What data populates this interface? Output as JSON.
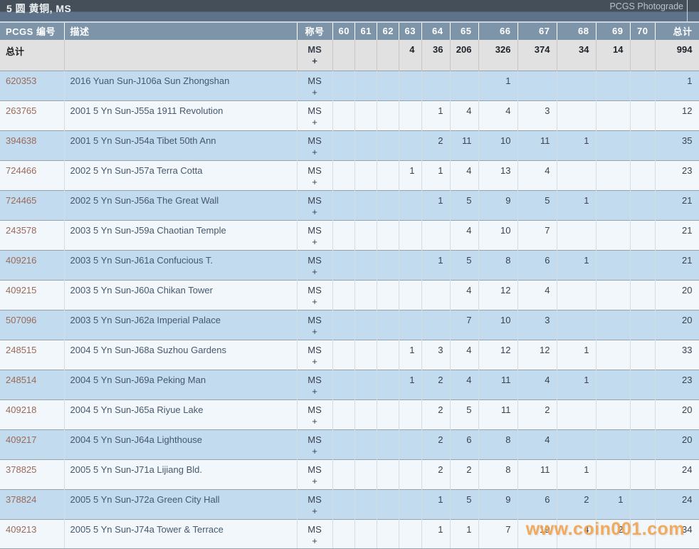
{
  "title_bar": {
    "title": "5 圆 黄铜, MS",
    "right_label": "PCGS Photograde"
  },
  "watermark": {
    "text": "www.coin001.com"
  },
  "colors": {
    "titlebar_bg": "#454f59",
    "header_bg": "#7e94a9",
    "totals_row_bg": "#e2e1e2",
    "row_alt_bg": "#c2dbee",
    "row_plain_bg": "#f2f7fb",
    "pcgs_number_text": "#9c6a59",
    "watermark_text": "#f2a44f"
  },
  "table": {
    "columns": {
      "pcgs_no": "PCGS 编号",
      "description": "描述",
      "designation": "称号",
      "total": "总计"
    },
    "grade_columns": [
      "60",
      "61",
      "62",
      "63",
      "64",
      "65",
      "66",
      "67",
      "68",
      "69",
      "70"
    ],
    "totals_row": {
      "label": "总计",
      "designation": [
        "MS",
        "+"
      ],
      "grades": {
        "63": 4,
        "64": 36,
        "65": 206,
        "66": 326,
        "67": 374,
        "68": 34,
        "69": 14
      },
      "total": 994
    },
    "rows": [
      {
        "pcgs_no": "620353",
        "description": "2016 Yuan Sun-J106a Sun Zhongshan",
        "designation": [
          "MS",
          "+"
        ],
        "grades": {
          "66": 1
        },
        "total": 1
      },
      {
        "pcgs_no": "263765",
        "description": "2001 5 Yn Sun-J55a 1911 Revolution",
        "designation": [
          "MS",
          "+"
        ],
        "grades": {
          "64": 1,
          "65": 4,
          "66": 4,
          "67": 3
        },
        "total": 12
      },
      {
        "pcgs_no": "394638",
        "description": "2001 5 Yn Sun-J54a Tibet 50th Ann",
        "designation": [
          "MS",
          "+"
        ],
        "grades": {
          "64": 2,
          "65": 11,
          "66": 10,
          "67": 11,
          "68": 1
        },
        "total": 35
      },
      {
        "pcgs_no": "724466",
        "description": "2002 5 Yn Sun-J57a Terra Cotta",
        "designation": [
          "MS",
          "+"
        ],
        "grades": {
          "63": 1,
          "64": 1,
          "65": 4,
          "66": 13,
          "67": 4
        },
        "total": 23
      },
      {
        "pcgs_no": "724465",
        "description": "2002 5 Yn Sun-J56a The Great Wall",
        "designation": [
          "MS",
          "+"
        ],
        "grades": {
          "64": 1,
          "65": 5,
          "66": 9,
          "67": 5,
          "68": 1
        },
        "total": 21
      },
      {
        "pcgs_no": "243578",
        "description": "2003 5 Yn Sun-J59a Chaotian Temple",
        "designation": [
          "MS",
          "+"
        ],
        "grades": {
          "65": 4,
          "66": 10,
          "67": 7
        },
        "total": 21
      },
      {
        "pcgs_no": "409216",
        "description": "2003 5 Yn Sun-J61a Confucious T.",
        "designation": [
          "MS",
          "+"
        ],
        "grades": {
          "64": 1,
          "65": 5,
          "66": 8,
          "67": 6,
          "68": 1
        },
        "total": 21
      },
      {
        "pcgs_no": "409215",
        "description": "2003 5 Yn Sun-J60a Chikan Tower",
        "designation": [
          "MS",
          "+"
        ],
        "grades": {
          "65": 4,
          "66": 12,
          "67": 4
        },
        "total": 20
      },
      {
        "pcgs_no": "507096",
        "description": "2003 5 Yn Sun-J62a Imperial Palace",
        "designation": [
          "MS",
          "+"
        ],
        "grades": {
          "65": 7,
          "66": 10,
          "67": 3
        },
        "total": 20
      },
      {
        "pcgs_no": "248515",
        "description": "2004 5 Yn Sun-J68a Suzhou Gardens",
        "designation": [
          "MS",
          "+"
        ],
        "grades": {
          "63": 1,
          "64": 3,
          "65": 4,
          "66": 12,
          "67": 12,
          "68": 1
        },
        "total": 33
      },
      {
        "pcgs_no": "248514",
        "description": "2004 5 Yn Sun-J69a Peking Man",
        "designation": [
          "MS",
          "+"
        ],
        "grades": {
          "63": 1,
          "64": 2,
          "65": 4,
          "66": 11,
          "67": 4,
          "68": 1
        },
        "total": 23
      },
      {
        "pcgs_no": "409218",
        "description": "2004 5 Yn Sun-J65a Riyue Lake",
        "designation": [
          "MS",
          "+"
        ],
        "grades": {
          "64": 2,
          "65": 5,
          "66": 11,
          "67": 2
        },
        "total": 20
      },
      {
        "pcgs_no": "409217",
        "description": "2004 5 Yn Sun-J64a Lighthouse",
        "designation": [
          "MS",
          "+"
        ],
        "grades": {
          "64": 2,
          "65": 6,
          "66": 8,
          "67": 4
        },
        "total": 20
      },
      {
        "pcgs_no": "378825",
        "description": "2005 5 Yn Sun-J71a Lijiang Bld.",
        "designation": [
          "MS",
          "+"
        ],
        "grades": {
          "64": 2,
          "65": 2,
          "66": 8,
          "67": 11,
          "68": 1
        },
        "total": 24
      },
      {
        "pcgs_no": "378824",
        "description": "2005 5 Yn Sun-J72a Green City Hall",
        "designation": [
          "MS",
          "+"
        ],
        "grades": {
          "64": 1,
          "65": 5,
          "66": 9,
          "67": 6,
          "68": 2,
          "69": 1
        },
        "total": 24
      },
      {
        "pcgs_no": "409213",
        "description": "2005 5 Yn Sun-J74a Tower & Terrace",
        "designation": [
          "MS",
          "+"
        ],
        "grades": {
          "64": 1,
          "65": 1,
          "66": 7,
          "67": 19,
          "68": 4,
          "69": 2
        },
        "total": 34
      }
    ]
  }
}
